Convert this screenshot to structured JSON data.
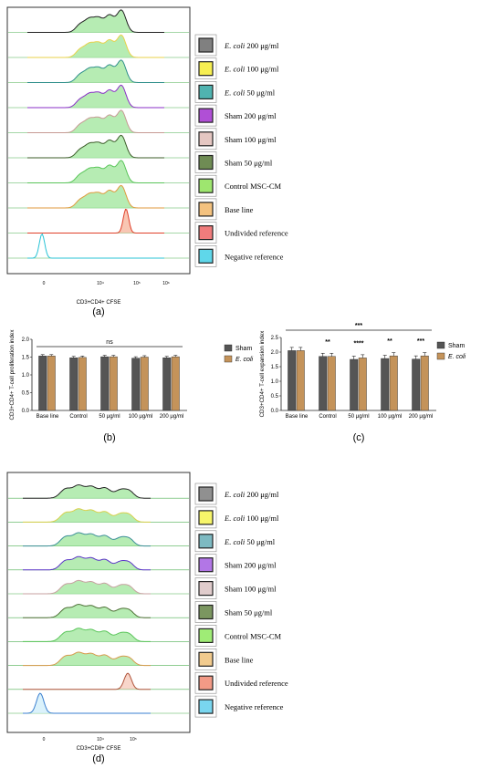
{
  "legend_items_top": [
    {
      "italic": "E. coli",
      "rest": " 200 μg/ml",
      "color": "#808080"
    },
    {
      "italic": "E. coli",
      "rest": " 100 μg/ml",
      "color": "#f7ef52"
    },
    {
      "italic": "E. coli",
      "rest": " 50 μg/ml",
      "color": "#4fb3b0"
    },
    {
      "italic": "",
      "rest": "Sham 200 μg/ml",
      "color": "#b04fd6"
    },
    {
      "italic": "",
      "rest": "Sham 100 μg/ml",
      "color": "#e5c7c2"
    },
    {
      "italic": "",
      "rest": "Sham 50 μg/ml",
      "color": "#6f8c54"
    },
    {
      "italic": "",
      "rest": "Control MSC-CM",
      "color": "#9ee66f"
    },
    {
      "italic": "",
      "rest": "Base line",
      "color": "#f4c27f"
    },
    {
      "italic": "",
      "rest": "Undivided reference",
      "color": "#f07c7c"
    },
    {
      "italic": "",
      "rest": "Negative reference",
      "color": "#5fd7ea"
    }
  ],
  "legend_items_bottom": [
    {
      "italic": "E. coli",
      "rest": " 200 μg/ml",
      "color": "#909090"
    },
    {
      "italic": "E. coli",
      "rest": " 100 μg/ml",
      "color": "#f7f56a"
    },
    {
      "italic": "E. coli",
      "rest": " 50 μg/ml",
      "color": "#7dbac2"
    },
    {
      "italic": "",
      "rest": "Sham 200 μg/ml",
      "color": "#b276e6"
    },
    {
      "italic": "",
      "rest": "Sham 100 μg/ml",
      "color": "#e0cccc"
    },
    {
      "italic": "",
      "rest": "Sham 50 μg/ml",
      "color": "#7b9660"
    },
    {
      "italic": "",
      "rest": "Control MSC-CM",
      "color": "#9fec76"
    },
    {
      "italic": "",
      "rest": "Base line",
      "color": "#f2cb8e"
    },
    {
      "italic": "",
      "rest": "Undivided reference",
      "color": "#f29a86"
    },
    {
      "italic": "",
      "rest": "Negative reference",
      "color": "#79d6ef"
    }
  ],
  "panel_a": {
    "xlabel": "CD3+CD4+ CFSE",
    "ticks": [
      "0",
      "10⁴",
      "10⁵",
      "10⁶"
    ],
    "label": "(a)"
  },
  "panel_d": {
    "xlabel": "CD3+CD8+ CFSE",
    "ticks": [
      "0",
      "10⁴",
      "10⁵"
    ],
    "label": "(d)"
  },
  "colors": {
    "sham": "#555555",
    "ecoli": "#c4935a",
    "histogram_fill": "#9ee69a",
    "histogram_line": "#4caf50",
    "undivided": "#e0402a",
    "negative": "#29c3d6"
  },
  "chart_data": [
    {
      "type": "bar",
      "panel": "(b)",
      "ylabel": "CD3+CD4+ T-cell proliferation index",
      "categories": [
        "Base line",
        "Control",
        "50 μg/ml",
        "100 μg/ml",
        "200 μg/ml"
      ],
      "ylim": [
        0,
        2.0
      ],
      "yticks": [
        "0.0",
        "0.5",
        "1.0",
        "1.5",
        "2.0"
      ],
      "series": [
        {
          "name": "Sham",
          "values": [
            1.53,
            1.48,
            1.51,
            1.47,
            1.48
          ]
        },
        {
          "name": "E. coli",
          "values": [
            1.53,
            1.49,
            1.51,
            1.5,
            1.51
          ]
        }
      ],
      "significance": "ns",
      "legend": "right"
    },
    {
      "type": "bar",
      "panel": "(c)",
      "ylabel": "CD3+CD4+ T-cell expansion index",
      "categories": [
        "Base line",
        "Control",
        "50 μg/ml",
        "100 μg/ml",
        "200 μg/ml"
      ],
      "ylim": [
        0,
        2.5
      ],
      "yticks": [
        "0.0",
        "0.5",
        "1.0",
        "1.5",
        "2.0",
        "2.5"
      ],
      "series": [
        {
          "name": "Sham",
          "values": [
            2.05,
            1.85,
            1.75,
            1.78,
            1.76
          ]
        },
        {
          "name": "E. coli",
          "values": [
            2.05,
            1.85,
            1.8,
            1.87,
            1.87
          ]
        }
      ],
      "overall_significance": "***",
      "group_significance": [
        "",
        "**",
        "****",
        "**",
        "***"
      ],
      "legend": "right"
    }
  ]
}
